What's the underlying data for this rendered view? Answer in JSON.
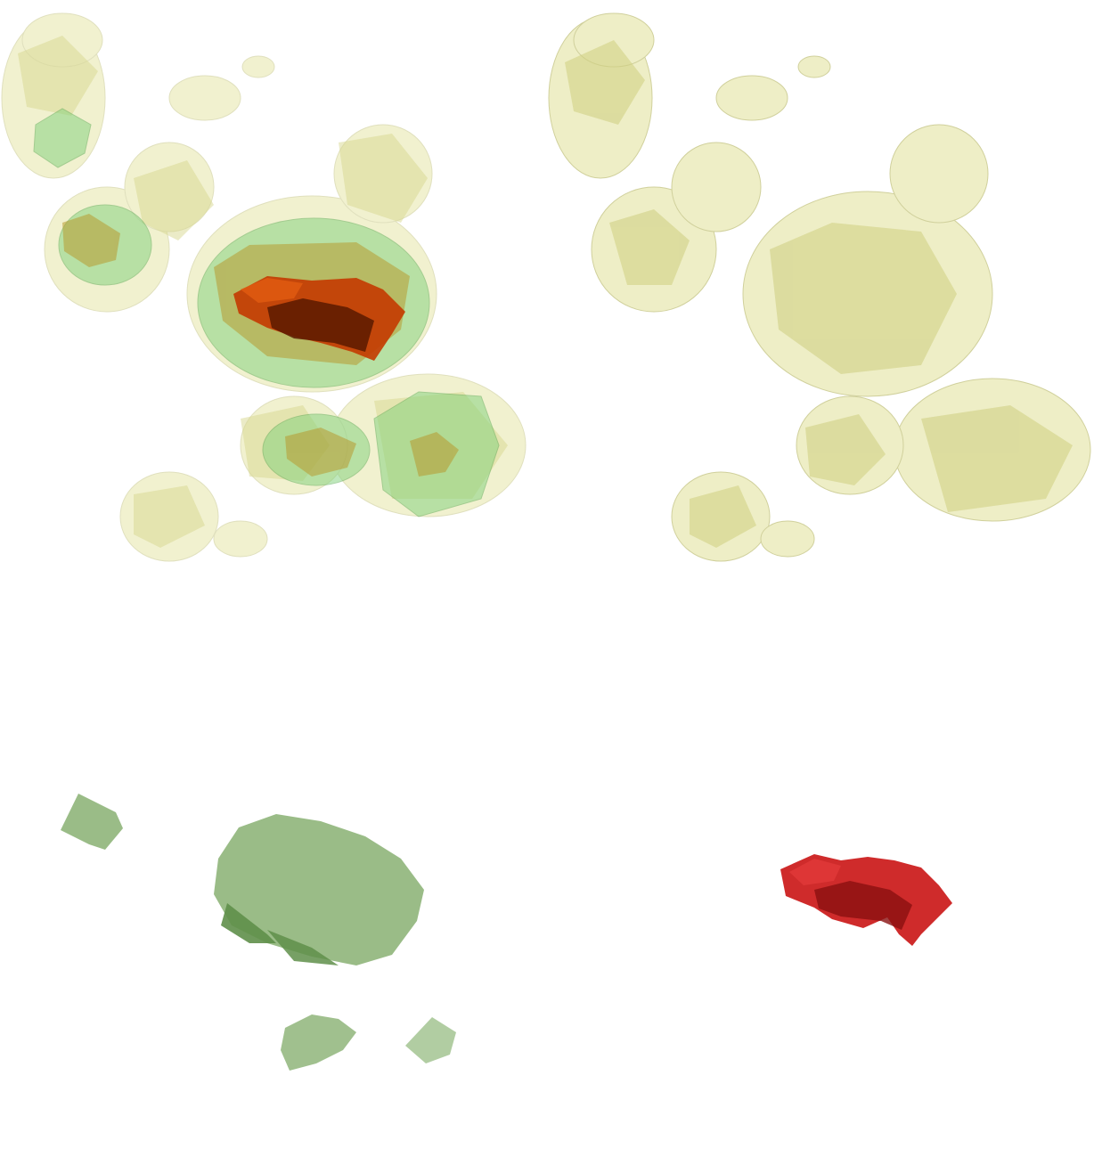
{
  "figure": {
    "panels": [
      {
        "id": "combined",
        "layers": [
          "low",
          "mid",
          "high"
        ]
      },
      {
        "id": "low",
        "layers": [
          "low"
        ]
      },
      {
        "id": "mid",
        "layers": [
          "mid"
        ]
      },
      {
        "id": "high",
        "layers": [
          "high"
        ]
      }
    ],
    "colors": {
      "low": "#e6e6a8",
      "low_edge": "#b8b868",
      "mid_combined": "#7fd17a",
      "mid_solo": "#8fb57a",
      "mid_solo_dark": "#5f8f4a",
      "high_combined": "#c43a00",
      "high_combined_dark": "#5a1a00",
      "high_solo": "#cc2020",
      "high_solo_dark": "#8a1010"
    }
  }
}
